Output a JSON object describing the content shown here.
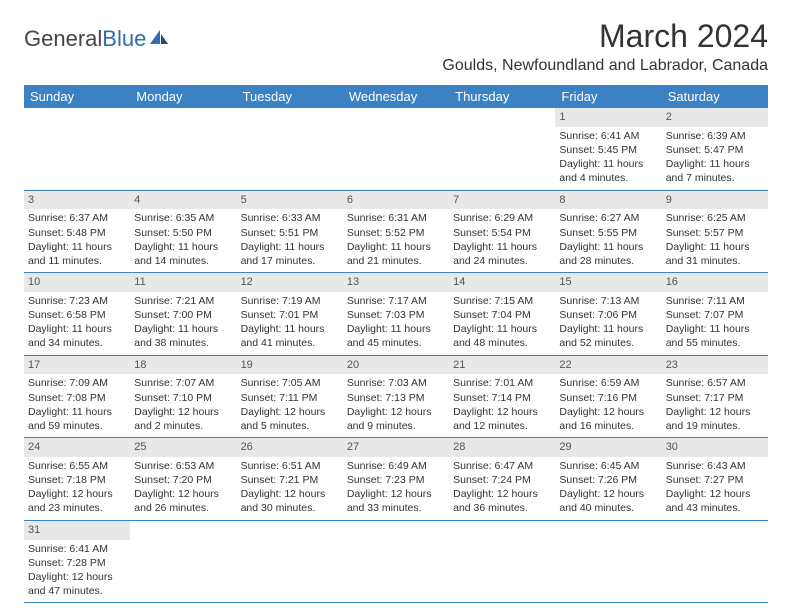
{
  "brand": {
    "general": "General",
    "blue": "Blue"
  },
  "title": "March 2024",
  "location": "Goulds, Newfoundland and Labrador, Canada",
  "colors": {
    "header_bg": "#3b82c4",
    "header_text": "#ffffff",
    "daynum_bg": "#e8e8e8",
    "daynum_text": "#555555",
    "cell_border": "#3b82c4",
    "body_text": "#333333",
    "logo_blue": "#2f6fb0"
  },
  "weekdays": [
    "Sunday",
    "Monday",
    "Tuesday",
    "Wednesday",
    "Thursday",
    "Friday",
    "Saturday"
  ],
  "layout": {
    "columns": 7,
    "rows": 6,
    "first_weekday_index": 5,
    "days_in_month": 31
  },
  "days": {
    "1": {
      "sunrise": "Sunrise: 6:41 AM",
      "sunset": "Sunset: 5:45 PM",
      "daylight": "Daylight: 11 hours and 4 minutes."
    },
    "2": {
      "sunrise": "Sunrise: 6:39 AM",
      "sunset": "Sunset: 5:47 PM",
      "daylight": "Daylight: 11 hours and 7 minutes."
    },
    "3": {
      "sunrise": "Sunrise: 6:37 AM",
      "sunset": "Sunset: 5:48 PM",
      "daylight": "Daylight: 11 hours and 11 minutes."
    },
    "4": {
      "sunrise": "Sunrise: 6:35 AM",
      "sunset": "Sunset: 5:50 PM",
      "daylight": "Daylight: 11 hours and 14 minutes."
    },
    "5": {
      "sunrise": "Sunrise: 6:33 AM",
      "sunset": "Sunset: 5:51 PM",
      "daylight": "Daylight: 11 hours and 17 minutes."
    },
    "6": {
      "sunrise": "Sunrise: 6:31 AM",
      "sunset": "Sunset: 5:52 PM",
      "daylight": "Daylight: 11 hours and 21 minutes."
    },
    "7": {
      "sunrise": "Sunrise: 6:29 AM",
      "sunset": "Sunset: 5:54 PM",
      "daylight": "Daylight: 11 hours and 24 minutes."
    },
    "8": {
      "sunrise": "Sunrise: 6:27 AM",
      "sunset": "Sunset: 5:55 PM",
      "daylight": "Daylight: 11 hours and 28 minutes."
    },
    "9": {
      "sunrise": "Sunrise: 6:25 AM",
      "sunset": "Sunset: 5:57 PM",
      "daylight": "Daylight: 11 hours and 31 minutes."
    },
    "10": {
      "sunrise": "Sunrise: 7:23 AM",
      "sunset": "Sunset: 6:58 PM",
      "daylight": "Daylight: 11 hours and 34 minutes."
    },
    "11": {
      "sunrise": "Sunrise: 7:21 AM",
      "sunset": "Sunset: 7:00 PM",
      "daylight": "Daylight: 11 hours and 38 minutes."
    },
    "12": {
      "sunrise": "Sunrise: 7:19 AM",
      "sunset": "Sunset: 7:01 PM",
      "daylight": "Daylight: 11 hours and 41 minutes."
    },
    "13": {
      "sunrise": "Sunrise: 7:17 AM",
      "sunset": "Sunset: 7:03 PM",
      "daylight": "Daylight: 11 hours and 45 minutes."
    },
    "14": {
      "sunrise": "Sunrise: 7:15 AM",
      "sunset": "Sunset: 7:04 PM",
      "daylight": "Daylight: 11 hours and 48 minutes."
    },
    "15": {
      "sunrise": "Sunrise: 7:13 AM",
      "sunset": "Sunset: 7:06 PM",
      "daylight": "Daylight: 11 hours and 52 minutes."
    },
    "16": {
      "sunrise": "Sunrise: 7:11 AM",
      "sunset": "Sunset: 7:07 PM",
      "daylight": "Daylight: 11 hours and 55 minutes."
    },
    "17": {
      "sunrise": "Sunrise: 7:09 AM",
      "sunset": "Sunset: 7:08 PM",
      "daylight": "Daylight: 11 hours and 59 minutes."
    },
    "18": {
      "sunrise": "Sunrise: 7:07 AM",
      "sunset": "Sunset: 7:10 PM",
      "daylight": "Daylight: 12 hours and 2 minutes."
    },
    "19": {
      "sunrise": "Sunrise: 7:05 AM",
      "sunset": "Sunset: 7:11 PM",
      "daylight": "Daylight: 12 hours and 5 minutes."
    },
    "20": {
      "sunrise": "Sunrise: 7:03 AM",
      "sunset": "Sunset: 7:13 PM",
      "daylight": "Daylight: 12 hours and 9 minutes."
    },
    "21": {
      "sunrise": "Sunrise: 7:01 AM",
      "sunset": "Sunset: 7:14 PM",
      "daylight": "Daylight: 12 hours and 12 minutes."
    },
    "22": {
      "sunrise": "Sunrise: 6:59 AM",
      "sunset": "Sunset: 7:16 PM",
      "daylight": "Daylight: 12 hours and 16 minutes."
    },
    "23": {
      "sunrise": "Sunrise: 6:57 AM",
      "sunset": "Sunset: 7:17 PM",
      "daylight": "Daylight: 12 hours and 19 minutes."
    },
    "24": {
      "sunrise": "Sunrise: 6:55 AM",
      "sunset": "Sunset: 7:18 PM",
      "daylight": "Daylight: 12 hours and 23 minutes."
    },
    "25": {
      "sunrise": "Sunrise: 6:53 AM",
      "sunset": "Sunset: 7:20 PM",
      "daylight": "Daylight: 12 hours and 26 minutes."
    },
    "26": {
      "sunrise": "Sunrise: 6:51 AM",
      "sunset": "Sunset: 7:21 PM",
      "daylight": "Daylight: 12 hours and 30 minutes."
    },
    "27": {
      "sunrise": "Sunrise: 6:49 AM",
      "sunset": "Sunset: 7:23 PM",
      "daylight": "Daylight: 12 hours and 33 minutes."
    },
    "28": {
      "sunrise": "Sunrise: 6:47 AM",
      "sunset": "Sunset: 7:24 PM",
      "daylight": "Daylight: 12 hours and 36 minutes."
    },
    "29": {
      "sunrise": "Sunrise: 6:45 AM",
      "sunset": "Sunset: 7:26 PM",
      "daylight": "Daylight: 12 hours and 40 minutes."
    },
    "30": {
      "sunrise": "Sunrise: 6:43 AM",
      "sunset": "Sunset: 7:27 PM",
      "daylight": "Daylight: 12 hours and 43 minutes."
    },
    "31": {
      "sunrise": "Sunrise: 6:41 AM",
      "sunset": "Sunset: 7:28 PM",
      "daylight": "Daylight: 12 hours and 47 minutes."
    }
  }
}
